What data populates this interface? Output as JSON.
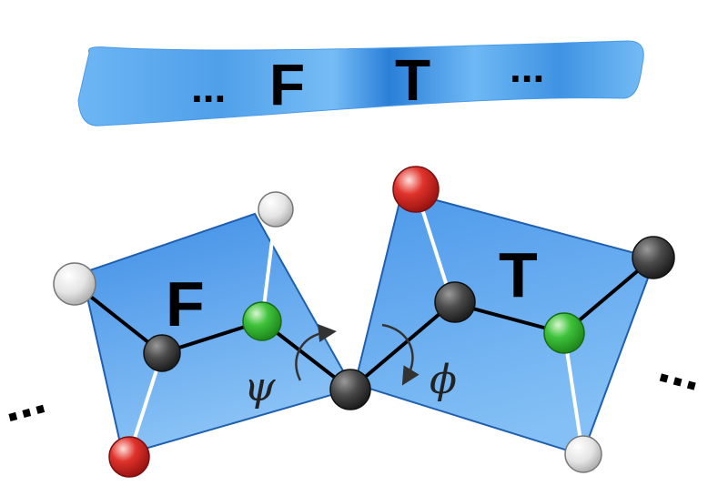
{
  "sequence_banner": {
    "left_ellipsis": "...",
    "residue_1": "F",
    "residue_2": "T",
    "right_ellipsis": "..."
  },
  "residues": [
    {
      "letter": "F"
    },
    {
      "letter": "T"
    }
  ],
  "chain_ellipsis_left": "...",
  "chain_ellipsis_right": "...",
  "dihedral_angles": {
    "psi": "ψ",
    "phi": "ϕ"
  },
  "colors": {
    "plane_fill": "#4a90e8",
    "plane_stroke": "#1f5fae",
    "carbon": "#3a3a3a",
    "nitrogen": "#2fb52f",
    "oxygen": "#d9282a",
    "hydrogen": "#e6e6e6",
    "banner": "#5ba8ef"
  }
}
